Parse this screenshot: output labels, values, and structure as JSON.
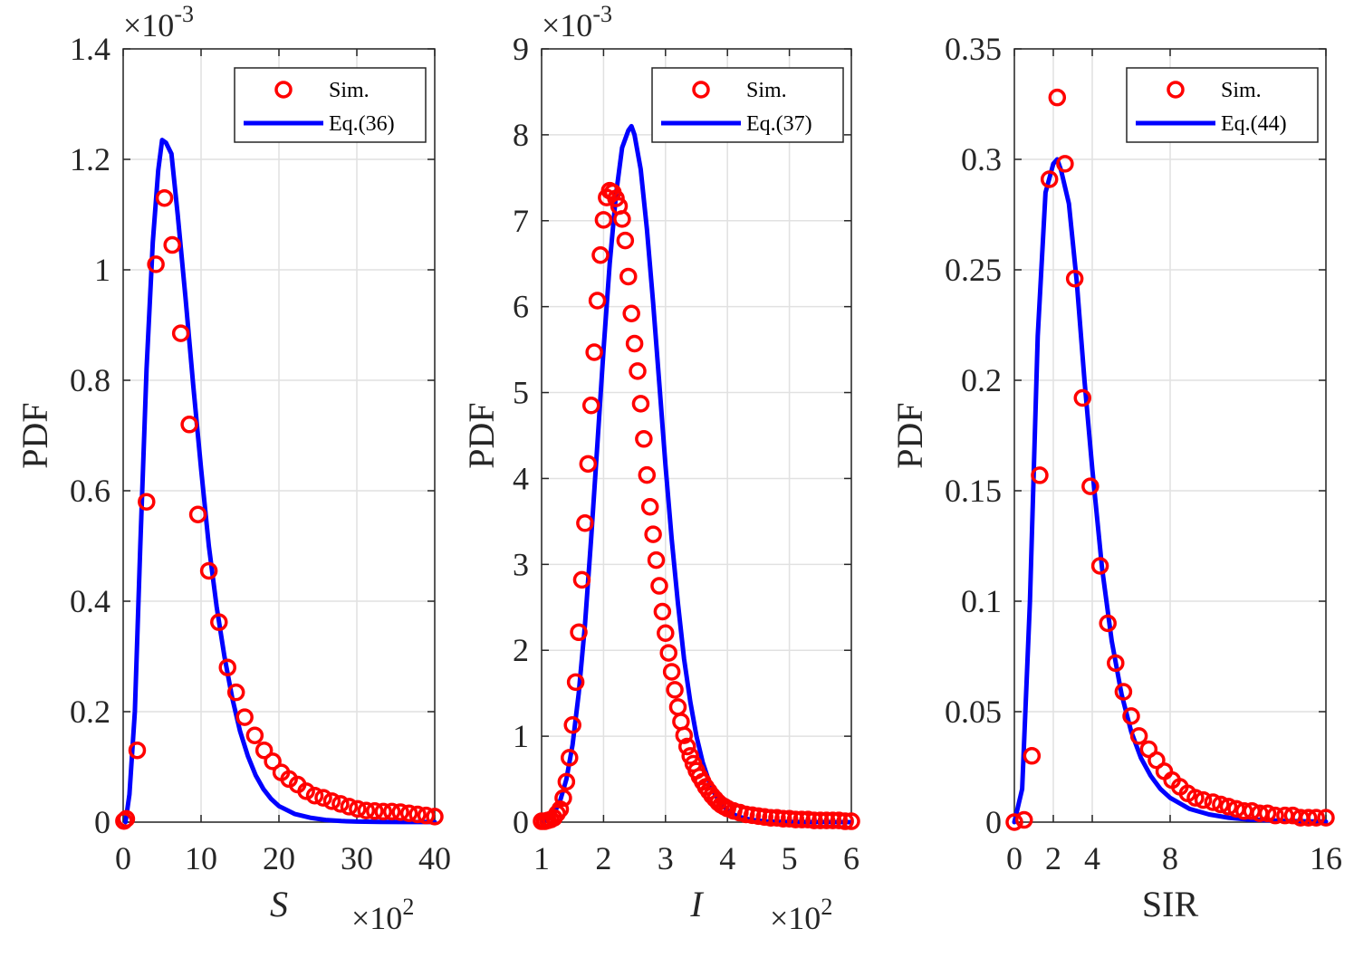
{
  "chart_data": [
    {
      "type": "line",
      "title": "",
      "xlabel": "S",
      "xlabel_italic": true,
      "ylabel": "PDF",
      "x_multiplier": "×10",
      "x_multiplier_exp": "2",
      "y_multiplier": "×10",
      "y_multiplier_exp": "-3",
      "xlim": [
        0,
        40
      ],
      "ylim": [
        0,
        1.4
      ],
      "xticks": [
        0,
        10,
        20,
        30,
        40
      ],
      "xtick_labels": [
        "0",
        "10",
        "20",
        "30",
        "40"
      ],
      "yticks": [
        0,
        0.2,
        0.4,
        0.6,
        0.8,
        1.0,
        1.2,
        1.4
      ],
      "ytick_labels": [
        "0",
        "0.2",
        "0.4",
        "0.6",
        "0.8",
        "1",
        "1.2",
        "1.4"
      ],
      "grid": true,
      "legend_position": "top-right",
      "series": [
        {
          "name": "Sim.",
          "style": "markers",
          "color": "#ff0000",
          "x": [
            0.1,
            0.4,
            1.8,
            3.0,
            4.2,
            5.3,
            6.3,
            7.4,
            8.5,
            9.6,
            11.0,
            12.3,
            13.4,
            14.5,
            15.6,
            16.9,
            18.1,
            19.2,
            20.3,
            21.3,
            22.4,
            23.5,
            24.6,
            25.7,
            26.8,
            27.9,
            29.0,
            30.1,
            31.2,
            32.3,
            33.4,
            34.5,
            35.6,
            36.7,
            37.8,
            38.9,
            40.0
          ],
          "y": [
            0.002,
            0.006,
            0.13,
            0.58,
            1.01,
            1.13,
            1.045,
            0.885,
            0.72,
            0.557,
            0.455,
            0.362,
            0.28,
            0.235,
            0.19,
            0.157,
            0.13,
            0.11,
            0.09,
            0.078,
            0.068,
            0.056,
            0.048,
            0.044,
            0.038,
            0.033,
            0.028,
            0.024,
            0.021,
            0.02,
            0.019,
            0.019,
            0.018,
            0.016,
            0.014,
            0.012,
            0.01
          ]
        },
        {
          "name": "Eq.(36)",
          "style": "line",
          "color": "#0000ff",
          "x": [
            0.3,
            0.8,
            1.5,
            2.2,
            3.0,
            3.8,
            4.5,
            5.0,
            5.5,
            6.2,
            7.0,
            8.0,
            9.0,
            10.0,
            11.0,
            12.0,
            13.0,
            14.0,
            15.0,
            16.0,
            17.0,
            18.0,
            19.0,
            20.0,
            22.0,
            24.0,
            26.0,
            28.0,
            30.0,
            33.0,
            36.0,
            40.0
          ],
          "y": [
            0.0,
            0.05,
            0.2,
            0.5,
            0.82,
            1.05,
            1.18,
            1.235,
            1.23,
            1.21,
            1.1,
            0.95,
            0.79,
            0.64,
            0.5,
            0.39,
            0.3,
            0.225,
            0.165,
            0.12,
            0.085,
            0.06,
            0.042,
            0.029,
            0.015,
            0.008,
            0.004,
            0.002,
            0.001,
            0.0005,
            0.0002,
            0.0001
          ]
        }
      ]
    },
    {
      "type": "line",
      "title": "",
      "xlabel": "I",
      "xlabel_italic": true,
      "ylabel": "PDF",
      "x_multiplier": "×10",
      "x_multiplier_exp": "2",
      "y_multiplier": "×10",
      "y_multiplier_exp": "-3",
      "xlim": [
        1,
        6
      ],
      "ylim": [
        0,
        9
      ],
      "xticks": [
        1,
        2,
        3,
        4,
        5,
        6
      ],
      "xtick_labels": [
        "1",
        "2",
        "3",
        "4",
        "5",
        "6"
      ],
      "yticks": [
        0,
        1,
        2,
        3,
        4,
        5,
        6,
        7,
        8,
        9
      ],
      "ytick_labels": [
        "0",
        "1",
        "2",
        "3",
        "4",
        "5",
        "6",
        "7",
        "8",
        "9"
      ],
      "grid": true,
      "legend_position": "top-right",
      "series": [
        {
          "name": "Sim.",
          "style": "markers",
          "color": "#ff0000",
          "x": [
            1.0,
            1.05,
            1.1,
            1.15,
            1.2,
            1.25,
            1.3,
            1.35,
            1.4,
            1.45,
            1.5,
            1.55,
            1.6,
            1.65,
            1.7,
            1.75,
            1.8,
            1.85,
            1.9,
            1.95,
            2.0,
            2.05,
            2.1,
            2.15,
            2.2,
            2.25,
            2.3,
            2.35,
            2.4,
            2.45,
            2.5,
            2.55,
            2.6,
            2.65,
            2.7,
            2.75,
            2.8,
            2.85,
            2.9,
            2.95,
            3.0,
            3.05,
            3.1,
            3.15,
            3.2,
            3.25,
            3.3,
            3.35,
            3.4,
            3.45,
            3.5,
            3.55,
            3.6,
            3.65,
            3.7,
            3.75,
            3.8,
            3.85,
            3.9,
            3.95,
            4.0,
            4.1,
            4.2,
            4.3,
            4.4,
            4.5,
            4.6,
            4.7,
            4.8,
            4.9,
            5.0,
            5.1,
            5.2,
            5.3,
            5.4,
            5.5,
            5.6,
            5.7,
            5.8,
            5.9,
            6.0
          ],
          "y": [
            0.01,
            0.01,
            0.02,
            0.03,
            0.05,
            0.1,
            0.15,
            0.28,
            0.47,
            0.75,
            1.13,
            1.63,
            2.21,
            2.82,
            3.48,
            4.17,
            4.85,
            5.47,
            6.07,
            6.6,
            7.01,
            7.27,
            7.35,
            7.33,
            7.26,
            7.17,
            7.02,
            6.77,
            6.35,
            5.92,
            5.57,
            5.25,
            4.87,
            4.46,
            4.04,
            3.67,
            3.35,
            3.05,
            2.75,
            2.45,
            2.2,
            1.97,
            1.75,
            1.54,
            1.34,
            1.17,
            1.01,
            0.88,
            0.77,
            0.68,
            0.6,
            0.53,
            0.47,
            0.41,
            0.36,
            0.31,
            0.27,
            0.23,
            0.2,
            0.18,
            0.16,
            0.13,
            0.11,
            0.09,
            0.08,
            0.07,
            0.06,
            0.05,
            0.05,
            0.04,
            0.04,
            0.03,
            0.03,
            0.03,
            0.02,
            0.02,
            0.02,
            0.02,
            0.02,
            0.01,
            0.01
          ]
        },
        {
          "name": "Eq.(37)",
          "style": "line",
          "color": "#0000ff",
          "x": [
            1.0,
            1.1,
            1.2,
            1.3,
            1.4,
            1.5,
            1.6,
            1.7,
            1.8,
            1.9,
            2.0,
            2.1,
            2.2,
            2.3,
            2.4,
            2.45,
            2.5,
            2.6,
            2.7,
            2.8,
            2.9,
            3.0,
            3.1,
            3.2,
            3.3,
            3.4,
            3.5,
            3.6,
            3.7,
            3.8,
            3.9,
            4.0,
            4.1,
            4.2,
            4.3,
            4.4,
            4.6,
            4.8,
            5.0,
            5.5,
            6.0
          ],
          "y": [
            0.0,
            0.03,
            0.1,
            0.25,
            0.5,
            0.9,
            1.5,
            2.3,
            3.3,
            4.4,
            5.5,
            6.5,
            7.3,
            7.85,
            8.05,
            8.1,
            8.0,
            7.6,
            6.9,
            6.05,
            5.1,
            4.15,
            3.3,
            2.55,
            1.9,
            1.4,
            1.0,
            0.7,
            0.48,
            0.32,
            0.21,
            0.14,
            0.09,
            0.06,
            0.04,
            0.025,
            0.01,
            0.005,
            0.002,
            0.001,
            0.0
          ]
        }
      ]
    },
    {
      "type": "line",
      "title": "",
      "xlabel": "SIR",
      "xlabel_italic": false,
      "ylabel": "PDF",
      "x_multiplier": "",
      "x_multiplier_exp": "",
      "y_multiplier": "",
      "y_multiplier_exp": "",
      "xlim": [
        0,
        16
      ],
      "ylim": [
        0,
        0.35
      ],
      "xticks": [
        0,
        2,
        4,
        8,
        16
      ],
      "xtick_labels": [
        "0",
        "2",
        "4",
        "8",
        "16"
      ],
      "yticks": [
        0,
        0.05,
        0.1,
        0.15,
        0.2,
        0.25,
        0.3,
        0.35
      ],
      "ytick_labels": [
        "0",
        "0.05",
        "0.1",
        "0.15",
        "0.2",
        "0.25",
        "0.3",
        "0.35"
      ],
      "grid": true,
      "legend_position": "top-right",
      "series": [
        {
          "name": "Sim.",
          "style": "markers",
          "color": "#ff0000",
          "x": [
            0.0,
            0.5,
            0.9,
            1.3,
            1.8,
            2.2,
            2.6,
            3.1,
            3.5,
            3.9,
            4.4,
            4.8,
            5.2,
            5.6,
            6.0,
            6.4,
            6.9,
            7.3,
            7.7,
            8.1,
            8.5,
            8.9,
            9.3,
            9.7,
            10.2,
            10.6,
            11.0,
            11.4,
            11.8,
            12.2,
            12.6,
            13.0,
            13.4,
            13.9,
            14.3,
            14.7,
            15.1,
            15.5,
            16.0
          ],
          "y": [
            0.0,
            0.001,
            0.03,
            0.157,
            0.291,
            0.328,
            0.298,
            0.246,
            0.192,
            0.152,
            0.116,
            0.09,
            0.072,
            0.059,
            0.048,
            0.039,
            0.033,
            0.028,
            0.023,
            0.019,
            0.016,
            0.013,
            0.011,
            0.01,
            0.009,
            0.008,
            0.007,
            0.006,
            0.005,
            0.005,
            0.004,
            0.004,
            0.003,
            0.003,
            0.003,
            0.002,
            0.002,
            0.002,
            0.002
          ]
        },
        {
          "name": "Eq.(44)",
          "style": "line",
          "color": "#0000ff",
          "x": [
            0.0,
            0.4,
            0.8,
            1.2,
            1.6,
            2.0,
            2.2,
            2.4,
            2.8,
            3.2,
            3.6,
            4.0,
            4.5,
            5.0,
            5.5,
            6.0,
            6.5,
            7.0,
            7.5,
            8.0,
            9.0,
            10.0,
            11.0,
            12.0,
            14.0,
            16.0
          ],
          "y": [
            0.0,
            0.015,
            0.1,
            0.22,
            0.285,
            0.298,
            0.3,
            0.295,
            0.28,
            0.245,
            0.2,
            0.16,
            0.115,
            0.082,
            0.058,
            0.041,
            0.029,
            0.021,
            0.015,
            0.011,
            0.006,
            0.0035,
            0.002,
            0.0012,
            0.0005,
            0.0002
          ]
        }
      ]
    }
  ]
}
